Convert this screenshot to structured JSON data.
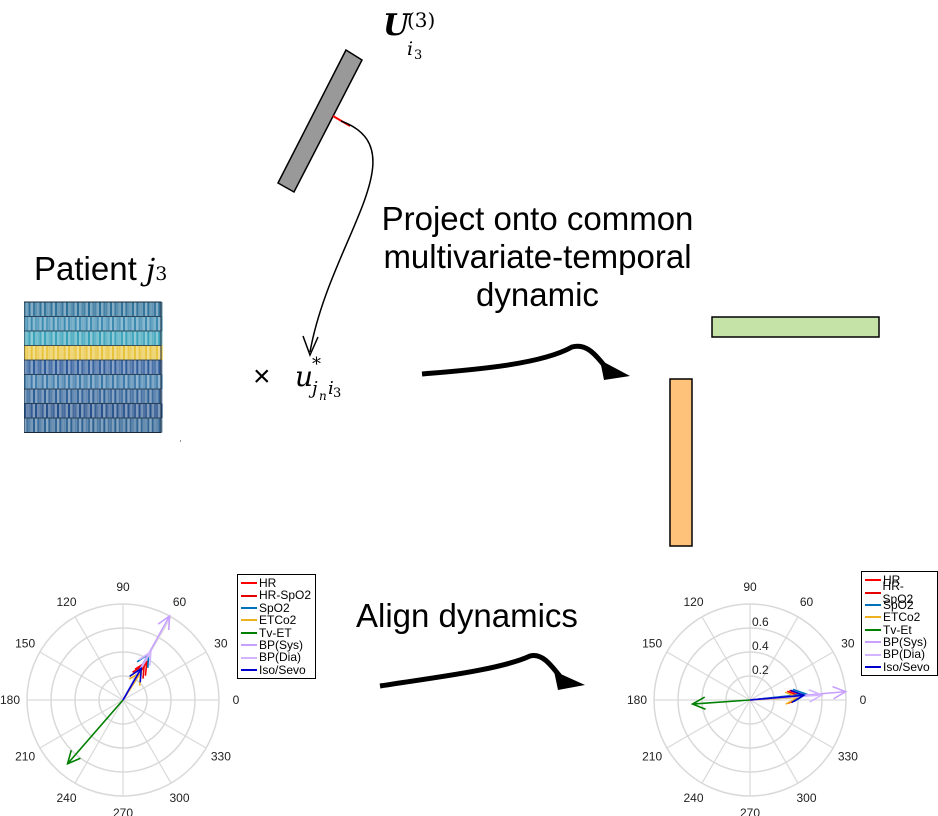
{
  "labels": {
    "u_matrix_symbol": "U",
    "u_matrix_sub": "i",
    "u_matrix_sub_sub": "3",
    "u_matrix_sup": "(3)",
    "patient_word": "Patient",
    "patient_var": "j",
    "patient_sub": "3",
    "times_symbol": "×",
    "coef_symbol": "u",
    "coef_sup": "*",
    "coef_sub_j": "j",
    "coef_sub_n": "n",
    "coef_sub_i": "i",
    "coef_sub_3": "3",
    "project_text": [
      "Project onto common",
      "multivariate-temporal",
      "dynamic"
    ],
    "align_text": "Align dynamics"
  },
  "colors": {
    "gray_bar": "#999999",
    "green_bar": "#c5e3a6",
    "orange_bar": "#ffc27a",
    "red_mark": "#ff0000",
    "grid": "#d9d9d9"
  },
  "chart_data": [
    {
      "type": "polar",
      "id": "left_compass",
      "angle_ticks": [
        "90",
        "60",
        "30",
        "0",
        "330",
        "300",
        "270",
        "240",
        "210",
        "180",
        "150",
        "120"
      ],
      "radial_ticks": [],
      "legend": {
        "placement": "right",
        "entries": [
          {
            "name": "HR",
            "color": "#ff0000"
          },
          {
            "name": "HR-SpO2",
            "color": "#e60000"
          },
          {
            "name": "SpO2",
            "color": "#0072bd"
          },
          {
            "name": "ETCo2",
            "color": "#edb120"
          },
          {
            "name": "Tv-ET",
            "color": "#008000"
          },
          {
            "name": "BP(Sys)",
            "color": "#c8a0ff"
          },
          {
            "name": "BP(Dia)",
            "color": "#d2b4ff"
          },
          {
            "name": "Iso/Sevo",
            "color": "#0000cc"
          }
        ]
      },
      "rmax": 1.0,
      "series": [
        {
          "name": "HR",
          "theta": 58,
          "r": 0.47
        },
        {
          "name": "HR-SpO2",
          "theta": 59,
          "r": 0.43
        },
        {
          "name": "SpO2",
          "theta": 61,
          "r": 0.55
        },
        {
          "name": "ETCo2",
          "theta": 57,
          "r": 0.35
        },
        {
          "name": "Tv-ET",
          "theta": 229,
          "r": 0.88
        },
        {
          "name": "BP(Sys)",
          "theta": 61,
          "r": 1.0
        },
        {
          "name": "BP(Dia)",
          "theta": 60,
          "r": 0.58
        },
        {
          "name": "Iso/Sevo",
          "theta": 60,
          "r": 0.38
        }
      ]
    },
    {
      "type": "polar",
      "id": "right_compass",
      "angle_ticks": [
        "90",
        "60",
        "30",
        "0",
        "330",
        "300",
        "270",
        "240",
        "210",
        "180",
        "150",
        "120"
      ],
      "radial_ticks": [
        "0.2",
        "0.4",
        "0.6"
      ],
      "legend": {
        "placement": "right",
        "entries": [
          {
            "name": "HR",
            "color": "#ff0000"
          },
          {
            "name": "HR-SpO2",
            "color": "#e60000"
          },
          {
            "name": "SpO2",
            "color": "#0072bd"
          },
          {
            "name": "ETCo2",
            "color": "#edb120"
          },
          {
            "name": "Tv-Et",
            "color": "#008000"
          },
          {
            "name": "BP(Sys)",
            "color": "#c8a0ff"
          },
          {
            "name": "BP(Dia)",
            "color": "#d2b4ff"
          },
          {
            "name": "Iso/Sevo",
            "color": "#0000cc"
          }
        ]
      },
      "rmax": 0.8,
      "series": [
        {
          "name": "HR",
          "theta": 4,
          "r": 0.42
        },
        {
          "name": "HR-SpO2",
          "theta": 5,
          "r": 0.44
        },
        {
          "name": "SpO2",
          "theta": 6,
          "r": 0.47
        },
        {
          "name": "ETCo2",
          "theta": 3,
          "r": 0.4
        },
        {
          "name": "Tv-Et",
          "theta": 184,
          "r": 0.48
        },
        {
          "name": "BP(Sys)",
          "theta": 5,
          "r": 0.8
        },
        {
          "name": "BP(Dia)",
          "theta": 4,
          "r": 0.6
        },
        {
          "name": "Iso/Sevo",
          "theta": 5,
          "r": 0.45
        }
      ]
    }
  ]
}
